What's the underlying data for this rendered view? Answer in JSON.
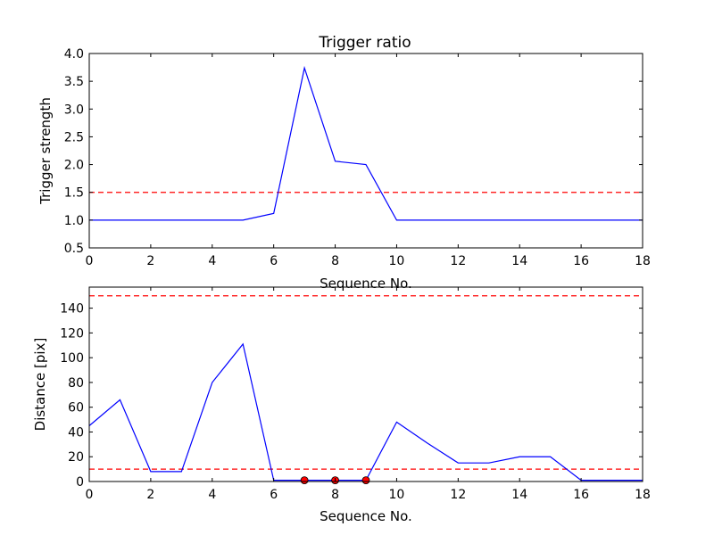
{
  "chart_data": [
    {
      "type": "line",
      "title": "Trigger ratio",
      "xlabel": "Sequence No.",
      "ylabel": "Trigger strength",
      "xlim": [
        0,
        18
      ],
      "ylim": [
        0.5,
        4.0
      ],
      "xticks": [
        "0",
        "2",
        "4",
        "6",
        "8",
        "10",
        "12",
        "14",
        "16",
        "18"
      ],
      "yticks": [
        "0.5",
        "1.0",
        "1.5",
        "2.0",
        "2.5",
        "3.0",
        "3.5",
        "4.0"
      ],
      "grid": false,
      "series": [
        {
          "color": "#0000ff",
          "x": [
            0,
            1,
            2,
            3,
            4,
            5,
            6,
            7,
            8,
            9,
            10,
            11,
            12,
            13,
            14,
            15,
            16,
            17,
            18
          ],
          "y": [
            1.0,
            1.0,
            1.0,
            1.0,
            1.0,
            1.0,
            1.12,
            3.74,
            2.06,
            2.0,
            1.0,
            1.0,
            1.0,
            1.0,
            1.0,
            1.0,
            1.0,
            1.0,
            1.0
          ]
        }
      ],
      "hlines": [
        {
          "y": 1.5,
          "color": "#ff0000",
          "style": "dashed"
        }
      ]
    },
    {
      "type": "line",
      "title": "",
      "xlabel": "Sequence No.",
      "ylabel": "Distance [pix]",
      "xlim": [
        0,
        18
      ],
      "ylim": [
        0,
        157
      ],
      "xticks": [
        "0",
        "2",
        "4",
        "6",
        "8",
        "10",
        "12",
        "14",
        "16",
        "18"
      ],
      "yticks": [
        "0",
        "20",
        "40",
        "60",
        "80",
        "100",
        "120",
        "140"
      ],
      "grid": false,
      "series": [
        {
          "color": "#0000ff",
          "x": [
            0,
            1,
            2,
            3,
            4,
            5,
            6,
            7,
            8,
            9,
            10,
            11,
            12,
            13,
            14,
            15,
            16,
            17,
            18
          ],
          "y": [
            45,
            66,
            8,
            8,
            80,
            111,
            1,
            1,
            1,
            1,
            48,
            31,
            15,
            15,
            20,
            20,
            1,
            1,
            1
          ]
        }
      ],
      "markers": {
        "color": "#ff0000",
        "points": [
          {
            "x": 7,
            "y": 1
          },
          {
            "x": 8,
            "y": 1
          },
          {
            "x": 9,
            "y": 1
          }
        ]
      },
      "hlines": [
        {
          "y": 150,
          "color": "#ff0000",
          "style": "dashed"
        },
        {
          "y": 10,
          "color": "#ff0000",
          "style": "dashed"
        }
      ]
    }
  ]
}
